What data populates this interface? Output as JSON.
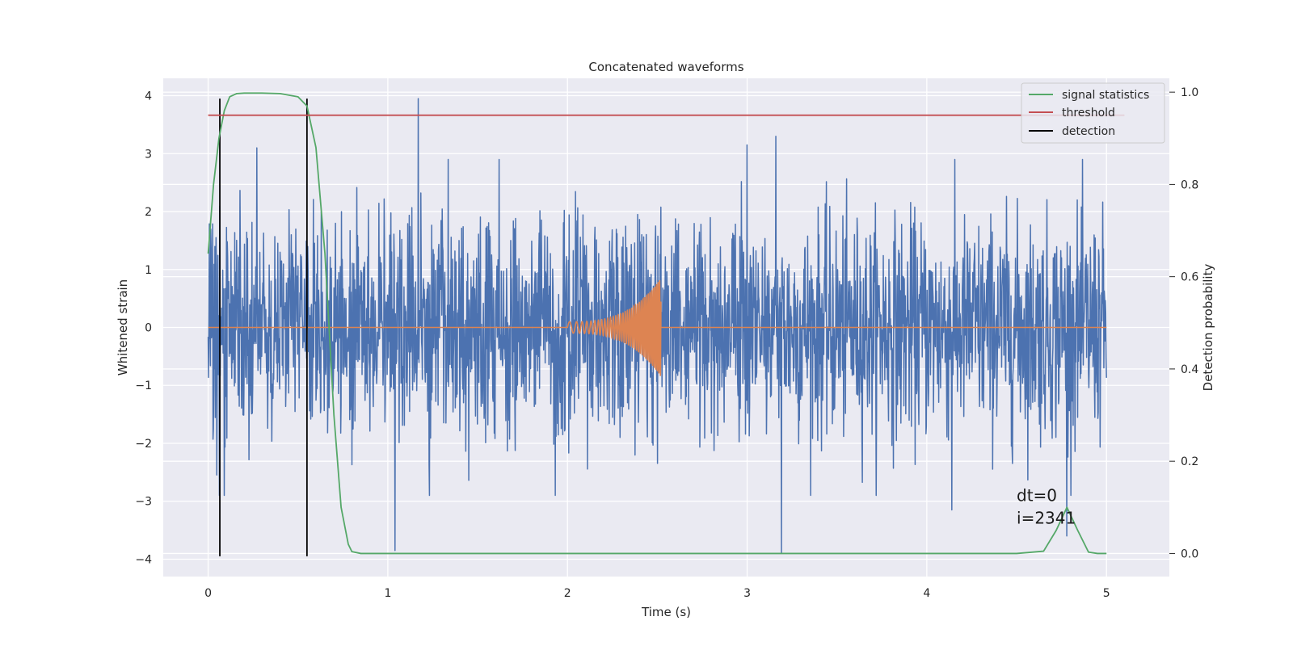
{
  "chart_data": {
    "type": "line",
    "title": "Concatenated waveforms",
    "xlabel": "Time (s)",
    "ylabel": "Whitened strain",
    "y2label": "Detection probability",
    "xlim": [
      -0.25,
      5.35
    ],
    "ylim": [
      -4.3,
      4.3
    ],
    "y2lim": [
      -0.05,
      1.03
    ],
    "x_ticks": [
      0,
      1,
      2,
      3,
      4,
      5
    ],
    "y_ticks": [
      -4,
      -3,
      -2,
      -1,
      0,
      1,
      2,
      3,
      4
    ],
    "y2_ticks": [
      0.0,
      0.2,
      0.4,
      0.6,
      0.8,
      1.0
    ],
    "x_tick_labels": [
      "0",
      "1",
      "2",
      "3",
      "4",
      "5"
    ],
    "y_tick_labels": [
      "−4",
      "−3",
      "−2",
      "−1",
      "0",
      "1",
      "2",
      "3",
      "4"
    ],
    "y2_tick_labels": [
      "0.0",
      "0.2",
      "0.4",
      "0.6",
      "0.8",
      "1.0"
    ],
    "grid": true,
    "legend_position": "top-right",
    "legend": [
      {
        "label": "signal statistics",
        "color": "#55a868"
      },
      {
        "label": "threshold",
        "color": "#c44e52"
      },
      {
        "label": "detection",
        "color": "#000000"
      }
    ],
    "series": [
      {
        "kind": "noise",
        "axis": "left",
        "color": "#4c72b0",
        "x_range": [
          0,
          5
        ],
        "typical_amplitude": 2.2,
        "peaks": [
          {
            "x": 1.17,
            "y": 3.95
          },
          {
            "x": 0.27,
            "y": 3.1
          },
          {
            "x": 3.0,
            "y": 3.15
          },
          {
            "x": 3.16,
            "y": 3.3
          },
          {
            "x": 1.04,
            "y": -3.85
          },
          {
            "x": 3.19,
            "y": -3.9
          },
          {
            "x": 4.78,
            "y": -3.6
          },
          {
            "x": 4.14,
            "y": -3.15
          }
        ]
      },
      {
        "kind": "chirp",
        "axis": "left",
        "color": "#dd8452",
        "x_range": [
          0,
          5
        ],
        "chirp_start": 2.0,
        "chirp_end": 2.52,
        "start_amplitude": 0.1,
        "peak_amplitude": 0.85
      },
      {
        "name": "signal statistics",
        "axis": "right",
        "color": "#55a868",
        "x": [
          0.0,
          0.03,
          0.06,
          0.09,
          0.12,
          0.16,
          0.2,
          0.3,
          0.4,
          0.5,
          0.55,
          0.6,
          0.65,
          0.7,
          0.74,
          0.78,
          0.8,
          0.85,
          1.5,
          2.5,
          3.5,
          4.5,
          4.65,
          4.72,
          4.78,
          4.84,
          4.9,
          4.95,
          5.0
        ],
        "y": [
          0.65,
          0.8,
          0.9,
          0.96,
          0.99,
          0.997,
          0.998,
          0.998,
          0.997,
          0.99,
          0.97,
          0.88,
          0.65,
          0.3,
          0.1,
          0.02,
          0.004,
          0.0,
          0.0,
          0.0,
          0.0,
          0.0,
          0.005,
          0.05,
          0.1,
          0.05,
          0.003,
          0.0,
          0.0
        ]
      },
      {
        "name": "threshold",
        "axis": "right",
        "color": "#c44e52",
        "x": [
          0,
          5.1
        ],
        "y": [
          0.95,
          0.95
        ]
      }
    ],
    "detections": [
      0.065,
      0.55
    ],
    "detection_color": "#000000",
    "annotation": {
      "lines": [
        "dt=0",
        "i=2341"
      ],
      "x": 4.5,
      "y": -3.0
    }
  }
}
